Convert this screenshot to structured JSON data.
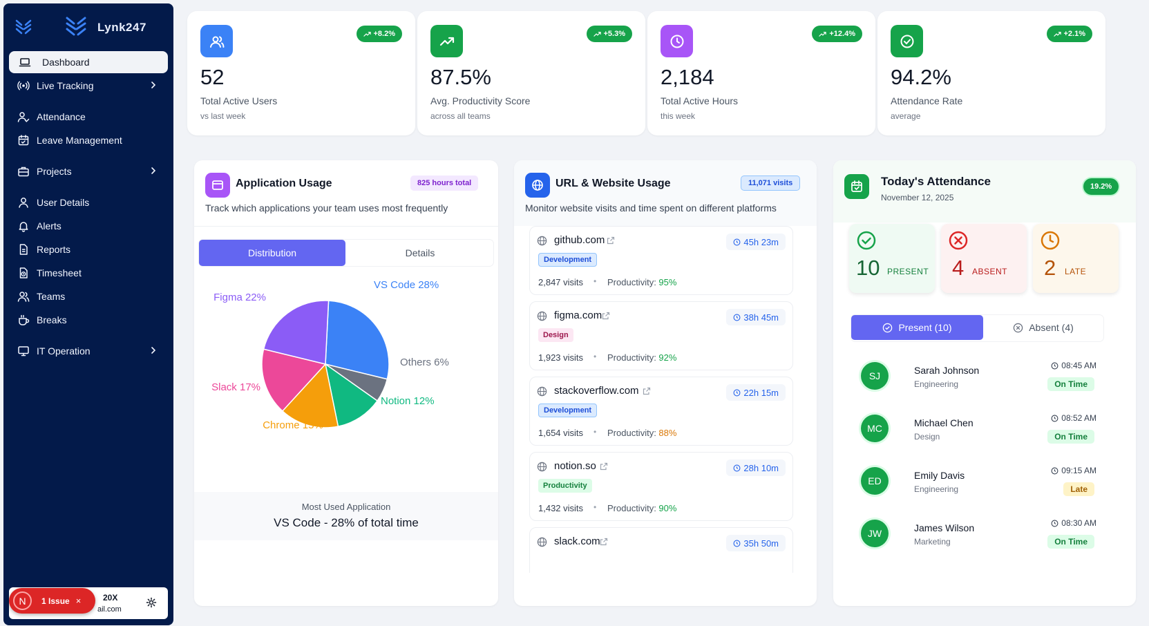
{
  "brand": "Lynk247",
  "sidebar": {
    "items": [
      {
        "label": "Dashboard",
        "icon": "laptop-icon",
        "active": true
      },
      {
        "label": "Live Tracking",
        "icon": "broadcast-icon",
        "chevron": true
      },
      {
        "label": "Attendance",
        "icon": "user-check-icon"
      },
      {
        "label": "Leave Management",
        "icon": "calendar-icon"
      },
      {
        "label": "Projects",
        "icon": "briefcase-icon",
        "chevron": true
      },
      {
        "label": "User Details",
        "icon": "user-icon"
      },
      {
        "label": "Alerts",
        "icon": "bell-icon"
      },
      {
        "label": "Reports",
        "icon": "file-icon"
      },
      {
        "label": "Timesheet",
        "icon": "clock-file-icon"
      },
      {
        "label": "Teams",
        "icon": "users-icon"
      },
      {
        "label": "Breaks",
        "icon": "coffee-icon"
      },
      {
        "label": "IT Operation",
        "icon": "monitor-icon",
        "chevron": true
      }
    ],
    "user": {
      "name_partial": "20X",
      "email_partial": "ail.com"
    },
    "issue": {
      "avatar_letter": "N",
      "label": "1 Issue",
      "close": "×"
    }
  },
  "stats": [
    {
      "value": "52",
      "label": "Total Active Users",
      "sub": "vs last week",
      "change": "+8.2%",
      "color": "#3b82f6",
      "icon": "users-icon"
    },
    {
      "value": "87.5%",
      "label": "Avg. Productivity Score",
      "sub": "across all teams",
      "change": "+5.3%",
      "color": "#16a34a",
      "icon": "trending-up-icon"
    },
    {
      "value": "2,184",
      "label": "Total Active Hours",
      "sub": "this week",
      "change": "+12.4%",
      "color": "#a855f7",
      "icon": "clock-icon"
    },
    {
      "value": "94.2%",
      "label": "Attendance Rate",
      "sub": "average",
      "change": "+2.1%",
      "color": "#16a34a",
      "icon": "check-circle-icon"
    }
  ],
  "app_usage": {
    "title": "Application Usage",
    "badge": "825 hours total",
    "desc": "Track which applications your team uses most frequently",
    "tabs": [
      "Distribution",
      "Details"
    ],
    "most_used_label": "Most Used Application",
    "most_used_value": "VS Code - 28% of total time"
  },
  "chart_data": {
    "type": "pie",
    "slices": [
      {
        "label": "VS Code 28%",
        "value": 28,
        "color": "#3b82f6"
      },
      {
        "label": "Others 6%",
        "value": 6,
        "color": "#6b7280"
      },
      {
        "label": "Notion 12%",
        "value": 12,
        "color": "#10b981"
      },
      {
        "label": "Chrome 15%",
        "value": 15,
        "color": "#f59e0b"
      },
      {
        "label": "Slack 17%",
        "value": 17,
        "color": "#ec4899"
      },
      {
        "label": "Figma 22%",
        "value": 22,
        "color": "#8b5cf6"
      }
    ]
  },
  "url_usage": {
    "title": "URL & Website Usage",
    "badge": "11,071 visits",
    "desc": "Monitor website visits and time spent on different platforms",
    "prod_prefix": "Productivity: ",
    "sites": [
      {
        "name": "github.com",
        "time": "45h 23m",
        "tag": "Development",
        "visits": "2,847 visits",
        "productivity": "95%"
      },
      {
        "name": "figma.com",
        "time": "38h 45m",
        "tag": "Design",
        "visits": "1,923 visits",
        "productivity": "92%"
      },
      {
        "name": "stackoverflow.com",
        "time": "22h 15m",
        "tag": "Development",
        "visits": "1,654 visits",
        "productivity": "88%"
      },
      {
        "name": "notion.so",
        "time": "28h 10m",
        "tag": "Productivity",
        "visits": "1,432 visits",
        "productivity": "90%"
      },
      {
        "name": "slack.com",
        "time": "35h 50m",
        "tag": "",
        "visits": "",
        "productivity": ""
      }
    ]
  },
  "attendance": {
    "title": "Today's Attendance",
    "date": "November 12, 2025",
    "badge": "19.2%",
    "tiles": [
      {
        "count": "10",
        "label": "PRESENT"
      },
      {
        "count": "4",
        "label": "ABSENT"
      },
      {
        "count": "2",
        "label": "LATE"
      }
    ],
    "tabs": [
      "Present (10)",
      "Absent (4)"
    ],
    "people": [
      {
        "initials": "SJ",
        "name": "Sarah Johnson",
        "dept": "Engineering",
        "time": "08:45 AM",
        "status": "On Time"
      },
      {
        "initials": "MC",
        "name": "Michael Chen",
        "dept": "Design",
        "time": "08:52 AM",
        "status": "On Time"
      },
      {
        "initials": "ED",
        "name": "Emily Davis",
        "dept": "Engineering",
        "time": "09:15 AM",
        "status": "Late"
      },
      {
        "initials": "JW",
        "name": "James Wilson",
        "dept": "Marketing",
        "time": "08:30 AM",
        "status": "On Time"
      }
    ]
  }
}
